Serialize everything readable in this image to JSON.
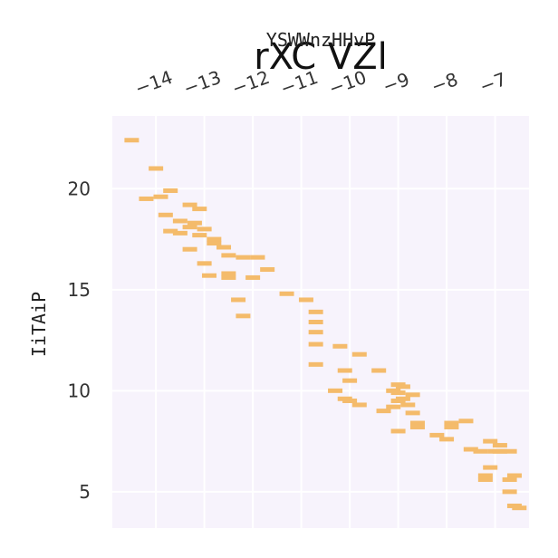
{
  "chart_data": {
    "type": "scatter",
    "title": "rXC VZl",
    "xlabel": "YSWWnzHHvP",
    "ylabel": "IiTAiP",
    "x_axis_position": "top",
    "xlim": [
      -14.9,
      -6.3
    ],
    "ylim": [
      3.2,
      23.6
    ],
    "xticks": [
      -14,
      -13,
      -12,
      -11,
      -10,
      -9,
      -8,
      -7
    ],
    "xtick_labels": [
      "−14",
      "−13",
      "−12",
      "−11",
      "−10",
      "−9",
      "−8",
      "−7"
    ],
    "yticks": [
      5,
      10,
      15,
      20
    ],
    "ytick_labels": [
      "5",
      "10",
      "15",
      "20"
    ],
    "grid": true,
    "background_color": "#f7f3fc",
    "marker_color": "#f4bb6b",
    "marker": "dash",
    "points": [
      [
        -14.5,
        22.4
      ],
      [
        -14.0,
        21.0
      ],
      [
        -14.2,
        19.5
      ],
      [
        -13.9,
        19.6
      ],
      [
        -13.7,
        19.9
      ],
      [
        -13.3,
        19.2
      ],
      [
        -13.1,
        19.0
      ],
      [
        -13.8,
        18.7
      ],
      [
        -13.5,
        18.4
      ],
      [
        -13.2,
        18.3
      ],
      [
        -13.0,
        18.0
      ],
      [
        -13.7,
        17.9
      ],
      [
        -13.5,
        17.8
      ],
      [
        -13.3,
        18.1
      ],
      [
        -13.1,
        17.7
      ],
      [
        -12.8,
        17.5
      ],
      [
        -12.8,
        17.3
      ],
      [
        -12.6,
        17.1
      ],
      [
        -13.3,
        17.0
      ],
      [
        -12.5,
        16.7
      ],
      [
        -12.2,
        16.6
      ],
      [
        -11.9,
        16.6
      ],
      [
        -13.0,
        16.3
      ],
      [
        -11.7,
        16.0
      ],
      [
        -12.9,
        15.7
      ],
      [
        -12.5,
        15.8
      ],
      [
        -12.5,
        15.6
      ],
      [
        -12.0,
        15.6
      ],
      [
        -11.3,
        14.8
      ],
      [
        -10.9,
        14.5
      ],
      [
        -12.3,
        14.5
      ],
      [
        -10.7,
        13.9
      ],
      [
        -10.7,
        13.4
      ],
      [
        -10.7,
        12.9
      ],
      [
        -12.2,
        13.7
      ],
      [
        -10.7,
        12.3
      ],
      [
        -10.2,
        12.2
      ],
      [
        -9.8,
        11.8
      ],
      [
        -10.7,
        11.3
      ],
      [
        -10.1,
        11.0
      ],
      [
        -9.4,
        11.0
      ],
      [
        -10.0,
        10.5
      ],
      [
        -10.3,
        10.0
      ],
      [
        -10.1,
        9.6
      ],
      [
        -10.0,
        9.5
      ],
      [
        -9.8,
        9.3
      ],
      [
        -9.3,
        9.0
      ],
      [
        -9.0,
        10.3
      ],
      [
        -8.9,
        10.2
      ],
      [
        -9.1,
        10.0
      ],
      [
        -9.0,
        9.9
      ],
      [
        -8.7,
        9.8
      ],
      [
        -8.9,
        9.6
      ],
      [
        -9.0,
        9.5
      ],
      [
        -8.8,
        9.3
      ],
      [
        -9.1,
        9.2
      ],
      [
        -8.7,
        8.9
      ],
      [
        -8.6,
        8.4
      ],
      [
        -8.6,
        8.2
      ],
      [
        -9.0,
        8.0
      ],
      [
        -7.9,
        8.4
      ],
      [
        -7.9,
        8.2
      ],
      [
        -7.6,
        8.5
      ],
      [
        -8.2,
        7.8
      ],
      [
        -8.0,
        7.6
      ],
      [
        -7.5,
        7.1
      ],
      [
        -7.3,
        7.0
      ],
      [
        -7.0,
        7.0
      ],
      [
        -6.9,
        7.0
      ],
      [
        -7.1,
        7.5
      ],
      [
        -6.9,
        7.3
      ],
      [
        -6.7,
        7.0
      ],
      [
        -7.1,
        6.2
      ],
      [
        -7.2,
        5.8
      ],
      [
        -7.2,
        5.6
      ],
      [
        -6.6,
        5.8
      ],
      [
        -6.7,
        5.6
      ],
      [
        -6.7,
        5.0
      ],
      [
        -6.6,
        4.3
      ],
      [
        -6.5,
        4.2
      ]
    ]
  }
}
